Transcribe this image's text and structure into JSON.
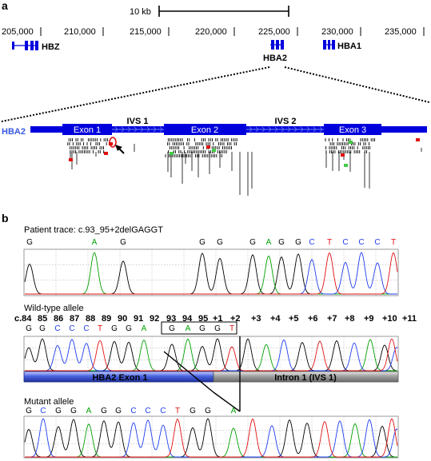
{
  "panel_a": {
    "label": "a",
    "scale_label": "10 kb",
    "coords": [
      "205,000",
      "210,000",
      "215,000",
      "220,000",
      "225,000",
      "230,000",
      "235,000"
    ],
    "genes": {
      "hbz": "HBZ",
      "hba2": "HBA2",
      "hba1": "HBA1"
    },
    "track_label": "HBA2",
    "exons": [
      "Exon 1",
      "Exon 2",
      "Exon 3"
    ],
    "introns": [
      "IVS 1",
      "IVS 2"
    ]
  },
  "panel_b": {
    "label": "b",
    "patient_title": "Patient trace: c.93_95+2delGAGGT",
    "patient_bases": [
      "G",
      "A",
      "G",
      "G",
      "G",
      "G",
      "A",
      "G",
      "G",
      "C",
      "T",
      "C",
      "C",
      "C",
      "T"
    ],
    "wt_title": "Wild-type allele",
    "positions": [
      "c.84",
      "85",
      "86",
      "87",
      "88",
      "89",
      "90",
      "91",
      "92",
      "93",
      "94",
      "95",
      "+1",
      "+2",
      "+3",
      "+4",
      "+5",
      "+6",
      "+7",
      "+8",
      "+9",
      "+10",
      "+11"
    ],
    "wt_bases": [
      "G",
      "G",
      "C",
      "C",
      "C",
      "T",
      "G",
      "G",
      "A",
      "G",
      "A",
      "G",
      "G",
      "T"
    ],
    "exon_bar": "HBA2 Exon 1",
    "intron_bar": "Intron 1 (IVS 1)",
    "mutant_title": "Mutant allele",
    "mutant_bases": [
      "G",
      "C",
      "G",
      "G",
      "A",
      "G",
      "G",
      "C",
      "C",
      "C",
      "T",
      "G",
      "G",
      "A"
    ]
  },
  "colors": {
    "blue_track": "#0000dd",
    "intron_chevron": "#5a6cf0",
    "G": "#000000",
    "A": "#00a000",
    "C": "#1e3cf0",
    "T": "#e01010",
    "exon_bar": "#3a58d8",
    "intron_bar": "#8a8a8a"
  }
}
